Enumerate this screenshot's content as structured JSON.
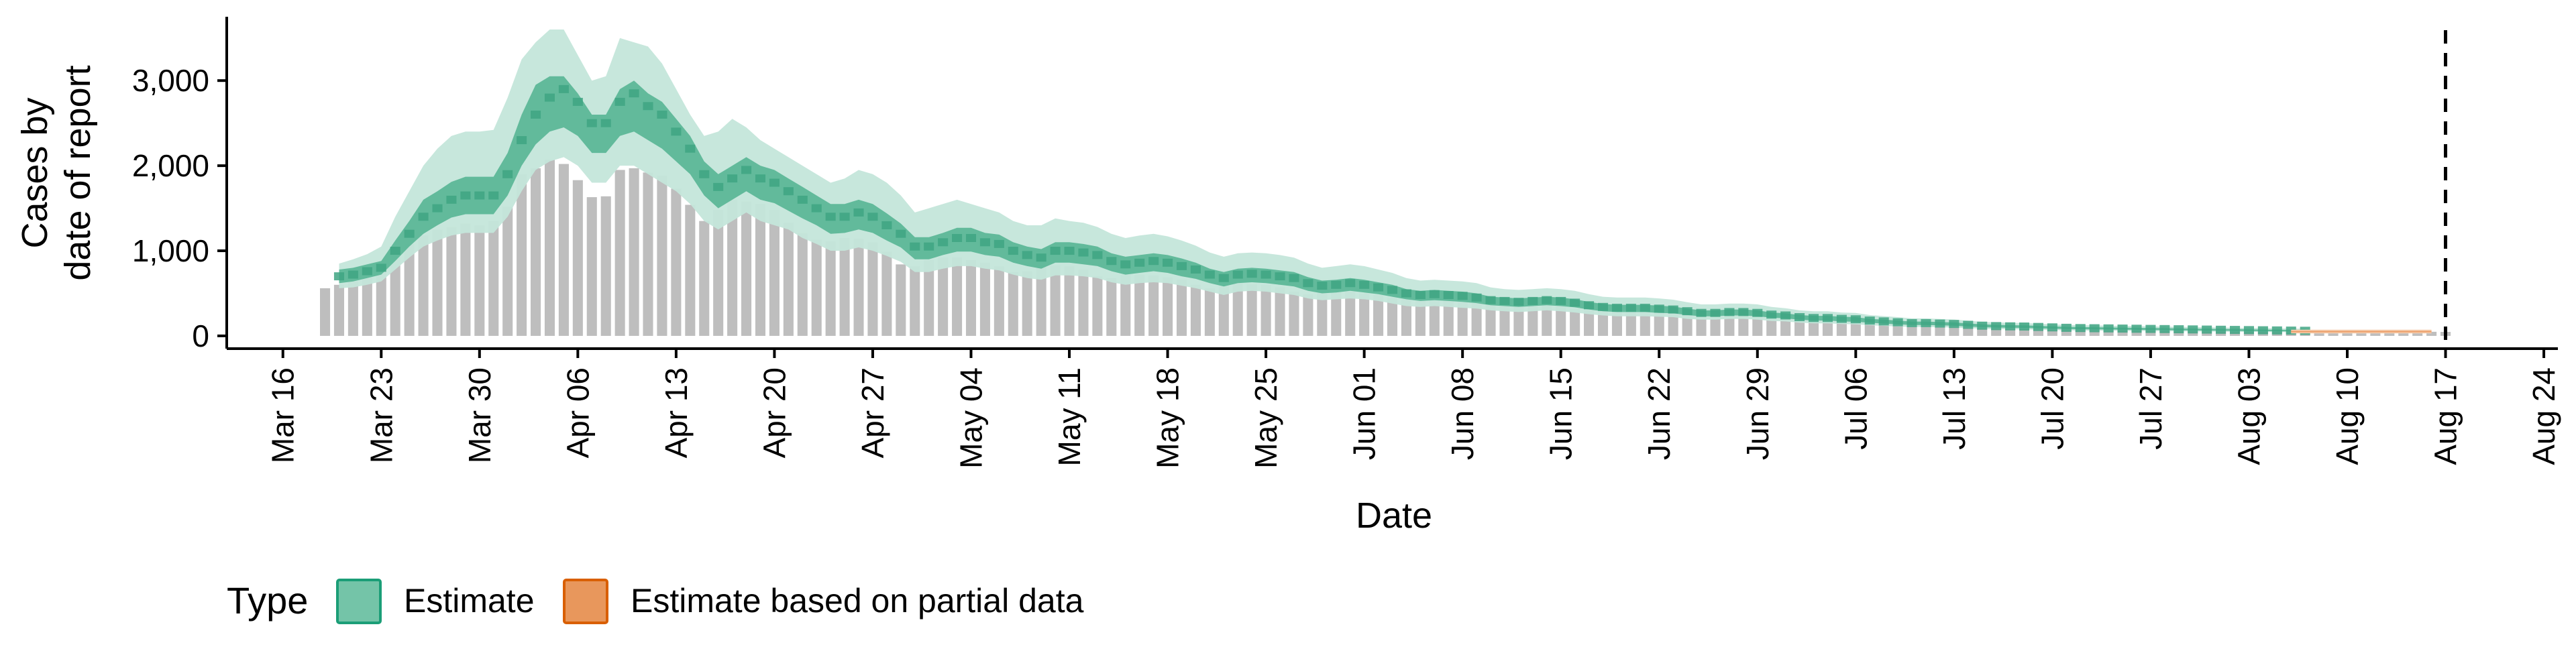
{
  "chart_data": {
    "type": "area",
    "title": "",
    "xlabel": "Date",
    "ylabel_lines": [
      "Cases by",
      "date of report"
    ],
    "y_ticks": [
      0,
      1000,
      2000,
      3000
    ],
    "y_tick_labels": [
      "0",
      "1,000",
      "2,000",
      "3,000"
    ],
    "ylim": [
      -150,
      3750
    ],
    "xlim": [
      "2020-03-12",
      "2020-08-25"
    ],
    "x_ticks": [
      "2020-03-16",
      "2020-03-23",
      "2020-03-30",
      "2020-04-06",
      "2020-04-13",
      "2020-04-20",
      "2020-04-27",
      "2020-05-04",
      "2020-05-11",
      "2020-05-18",
      "2020-05-25",
      "2020-06-01",
      "2020-06-08",
      "2020-06-15",
      "2020-06-22",
      "2020-06-29",
      "2020-07-06",
      "2020-07-13",
      "2020-07-20",
      "2020-07-27",
      "2020-08-03",
      "2020-08-10",
      "2020-08-17",
      "2020-08-24"
    ],
    "x_tick_labels": [
      "Mar 16",
      "Mar 23",
      "Mar 30",
      "Apr 06",
      "Apr 13",
      "Apr 20",
      "Apr 27",
      "May 04",
      "May 11",
      "May 18",
      "May 25",
      "Jun 01",
      "Jun 08",
      "Jun 15",
      "Jun 22",
      "Jun 29",
      "Jul 06",
      "Jul 13",
      "Jul 20",
      "Jul 27",
      "Aug 03",
      "Aug 10",
      "Aug 17",
      "Aug 24"
    ],
    "vline_date": "2020-08-17",
    "grid": false,
    "legend": {
      "title": "Type",
      "position": "bottom-left",
      "items": [
        {
          "label": "Estimate",
          "fill": "#74c4a8",
          "stroke": "#1b9e77"
        },
        {
          "label": "Estimate based on partial data",
          "fill": "#e8975c",
          "stroke": "#d95f02"
        }
      ]
    },
    "colors": {
      "bars": "#bebebe",
      "estimate_outer": "#c4e6da",
      "estimate_mid": "#8fd0b8",
      "estimate_inner": "#57b593",
      "partial_outer": "#f6cdae",
      "partial_inner": "#ec9e69",
      "vline": "#000000"
    },
    "series": [
      {
        "name": "Reported cases",
        "type": "bar",
        "start_date": "2020-03-19",
        "values": [
          560,
          600,
          640,
          700,
          860,
          1000,
          1080,
          1180,
          1250,
          1280,
          1320,
          1300,
          1350,
          1520,
          1900,
          1970,
          2070,
          2020,
          1830,
          1630,
          1640,
          1950,
          1970,
          1920,
          1880,
          1730,
          1540,
          1350,
          1480,
          1600,
          1580,
          1550,
          1480,
          1330,
          1210,
          1130,
          1110,
          1150,
          1140,
          1100,
          990,
          840,
          820,
          890,
          920,
          920,
          890,
          860,
          820,
          750,
          760,
          840,
          830,
          820,
          780,
          700,
          680,
          720,
          720,
          710,
          690,
          660,
          600,
          560,
          620,
          620,
          610,
          600,
          570,
          520,
          490,
          520,
          530,
          520,
          500,
          480,
          450,
          430,
          440,
          430,
          420,
          400,
          380,
          360,
          350,
          370,
          380,
          370,
          350,
          320,
          300,
          290,
          310,
          310,
          300,
          290,
          270,
          250,
          240,
          260,
          260,
          250,
          240,
          220,
          200,
          190,
          200,
          200,
          190,
          180,
          170,
          150,
          140,
          150,
          150,
          140,
          130,
          120,
          110,
          100,
          105,
          110,
          105,
          100,
          95,
          90,
          85,
          80,
          85,
          90,
          85,
          80,
          75,
          70,
          68,
          70,
          72,
          70,
          66,
          62,
          58,
          55,
          56,
          58,
          56,
          54,
          50,
          48,
          46,
          47,
          48,
          47
        ]
      },
      {
        "name": "Estimate",
        "type": "band",
        "start_date": "2020-03-20",
        "median": [
          700,
          720,
          760,
          800,
          1000,
          1200,
          1400,
          1500,
          1600,
          1650,
          1650,
          1650,
          1900,
          2300,
          2600,
          2800,
          2900,
          2750,
          2500,
          2500,
          2750,
          2850,
          2700,
          2600,
          2400,
          2200,
          1900,
          1750,
          1850,
          1950,
          1850,
          1800,
          1700,
          1600,
          1500,
          1400,
          1400,
          1450,
          1400,
          1300,
          1200,
          1050,
          1050,
          1100,
          1150,
          1150,
          1100,
          1080,
          1000,
          950,
          920,
          1000,
          1000,
          980,
          950,
          880,
          840,
          860,
          880,
          860,
          820,
          780,
          720,
          680,
          720,
          730,
          720,
          700,
          680,
          620,
          590,
          600,
          620,
          600,
          570,
          540,
          500,
          480,
          490,
          480,
          470,
          450,
          420,
          410,
          400,
          410,
          420,
          410,
          390,
          360,
          340,
          330,
          330,
          330,
          320,
          310,
          290,
          270,
          270,
          280,
          280,
          270,
          250,
          240,
          220,
          210,
          210,
          200,
          195,
          180,
          170,
          160,
          150,
          150,
          145,
          140,
          130,
          120,
          115,
          112,
          110,
          105,
          100,
          95,
          92,
          90,
          88,
          86,
          84,
          82,
          80,
          78,
          76,
          74,
          72,
          70,
          68,
          66,
          64,
          62,
          60
        ],
        "inner": [
          [
            620,
            640,
            680,
            720,
            880,
            1050,
            1200,
            1300,
            1390,
            1430,
            1430,
            1430,
            1650,
            2000,
            2250,
            2400,
            2450,
            2350,
            2150,
            2150,
            2350,
            2400,
            2300,
            2200,
            2050,
            1900,
            1650,
            1500,
            1600,
            1700,
            1600,
            1560,
            1470,
            1380,
            1300,
            1200,
            1210,
            1250,
            1210,
            1120,
            1040,
            900,
            900,
            950,
            990,
            990,
            950,
            930,
            860,
            820,
            790,
            860,
            860,
            840,
            820,
            760,
            720,
            740,
            760,
            740,
            700,
            670,
            620,
            580,
            620,
            630,
            620,
            600,
            580,
            530,
            500,
            510,
            530,
            510,
            490,
            460,
            430,
            410,
            420,
            410,
            400,
            385,
            360,
            350,
            340,
            350,
            360,
            350,
            335,
            310,
            290,
            280,
            280,
            280,
            270,
            265,
            245,
            230,
            230,
            240,
            240,
            230,
            215,
            205,
            190,
            180,
            180,
            170,
            165,
            155,
            145,
            135,
            128,
            128,
            124,
            120,
            110,
            102,
            98,
            95,
            94,
            89,
            85,
            80,
            78,
            76,
            75,
            73,
            71,
            70,
            68,
            66,
            64,
            62,
            61,
            59,
            57,
            56,
            54,
            52,
            51
          ],
          [
            780,
            800,
            840,
            880,
            1120,
            1350,
            1600,
            1700,
            1810,
            1870,
            1870,
            1870,
            2150,
            2600,
            2950,
            3050,
            3050,
            2850,
            2600,
            2600,
            2900,
            3000,
            2850,
            2750,
            2550,
            2350,
            2050,
            1900,
            2000,
            2100,
            2000,
            1950,
            1850,
            1750,
            1650,
            1550,
            1550,
            1600,
            1550,
            1440,
            1320,
            1160,
            1160,
            1210,
            1270,
            1270,
            1210,
            1190,
            1100,
            1050,
            1020,
            1100,
            1100,
            1080,
            1050,
            970,
            930,
            950,
            970,
            950,
            910,
            860,
            790,
            750,
            790,
            800,
            790,
            770,
            750,
            690,
            650,
            660,
            680,
            660,
            630,
            600,
            550,
            530,
            540,
            530,
            520,
            500,
            460,
            450,
            440,
            450,
            460,
            450,
            430,
            400,
            375,
            365,
            365,
            365,
            355,
            345,
            320,
            300,
            300,
            310,
            310,
            300,
            275,
            265,
            245,
            235,
            235,
            225,
            220,
            200,
            190,
            180,
            168,
            168,
            162,
            158,
            146,
            135,
            130,
            126,
            124,
            118,
            112,
            106,
            103,
            101,
            99,
            96,
            94,
            92,
            90,
            87,
            85,
            83,
            81,
            79,
            76,
            74,
            72,
            70,
            68
          ]
        ],
        "outer": [
          [
            560,
            570,
            600,
            640,
            780,
            920,
            1050,
            1120,
            1180,
            1210,
            1210,
            1210,
            1400,
            1700,
            1950,
            2050,
            2100,
            2000,
            1800,
            1800,
            2000,
            2000,
            1900,
            1800,
            1700,
            1550,
            1350,
            1250,
            1350,
            1450,
            1350,
            1300,
            1250,
            1150,
            1080,
            1000,
            1000,
            1040,
            1000,
            940,
            870,
            750,
            750,
            790,
            820,
            820,
            790,
            770,
            720,
            680,
            660,
            710,
            710,
            700,
            680,
            630,
            600,
            620,
            630,
            620,
            590,
            560,
            520,
            480,
            520,
            530,
            520,
            500,
            480,
            440,
            420,
            430,
            440,
            430,
            410,
            380,
            350,
            340,
            350,
            340,
            330,
            320,
            300,
            290,
            280,
            290,
            300,
            290,
            275,
            255,
            240,
            230,
            230,
            230,
            225,
            220,
            200,
            190,
            190,
            200,
            200,
            190,
            175,
            170,
            155,
            148,
            148,
            140,
            136,
            126,
            118,
            110,
            104,
            104,
            101,
            98,
            90,
            84,
            80,
            78,
            76,
            72,
            69,
            65,
            63,
            62,
            61,
            60,
            58,
            57,
            55,
            54,
            52,
            51,
            50,
            48,
            47,
            46,
            44,
            43,
            42
          ],
          [
            850,
            900,
            960,
            1050,
            1400,
            1700,
            2000,
            2200,
            2350,
            2400,
            2400,
            2420,
            2800,
            3250,
            3450,
            3600,
            3600,
            3300,
            3000,
            3050,
            3500,
            3450,
            3400,
            3200,
            2900,
            2600,
            2350,
            2400,
            2550,
            2450,
            2300,
            2200,
            2100,
            2000,
            1900,
            1800,
            1850,
            1950,
            1900,
            1800,
            1650,
            1450,
            1500,
            1550,
            1600,
            1550,
            1500,
            1450,
            1350,
            1300,
            1300,
            1380,
            1350,
            1330,
            1280,
            1200,
            1150,
            1180,
            1200,
            1170,
            1120,
            1060,
            980,
            930,
            970,
            980,
            970,
            950,
            920,
            850,
            800,
            820,
            840,
            820,
            780,
            740,
            680,
            650,
            660,
            650,
            640,
            620,
            570,
            550,
            540,
            550,
            560,
            550,
            530,
            490,
            460,
            450,
            450,
            450,
            440,
            425,
            395,
            370,
            370,
            380,
            380,
            370,
            340,
            325,
            300,
            290,
            290,
            275,
            270,
            245,
            232,
            220,
            205,
            205,
            198,
            193,
            178,
            165,
            158,
            154,
            151,
            144,
            137,
            130,
            126,
            123,
            120,
            117,
            115,
            112,
            109,
            106,
            104,
            101,
            98,
            96,
            93,
            91,
            88,
            86,
            83
          ]
        ]
      },
      {
        "name": "Estimate based on partial data",
        "type": "band",
        "start_date": "2020-08-06",
        "median": [
          50,
          50,
          50,
          50,
          50,
          50,
          50,
          50,
          50,
          50,
          50
        ],
        "inner": [
          [
            42,
            42,
            42,
            42,
            42,
            42,
            42,
            42,
            42,
            42,
            42
          ],
          [
            58,
            58,
            58,
            58,
            58,
            58,
            58,
            58,
            58,
            58,
            58
          ]
        ],
        "outer": [
          [
            30,
            30,
            30,
            30,
            30,
            30,
            30,
            30,
            30,
            30,
            30
          ],
          [
            72,
            72,
            72,
            72,
            72,
            72,
            72,
            72,
            72,
            72,
            72
          ]
        ]
      }
    ]
  }
}
